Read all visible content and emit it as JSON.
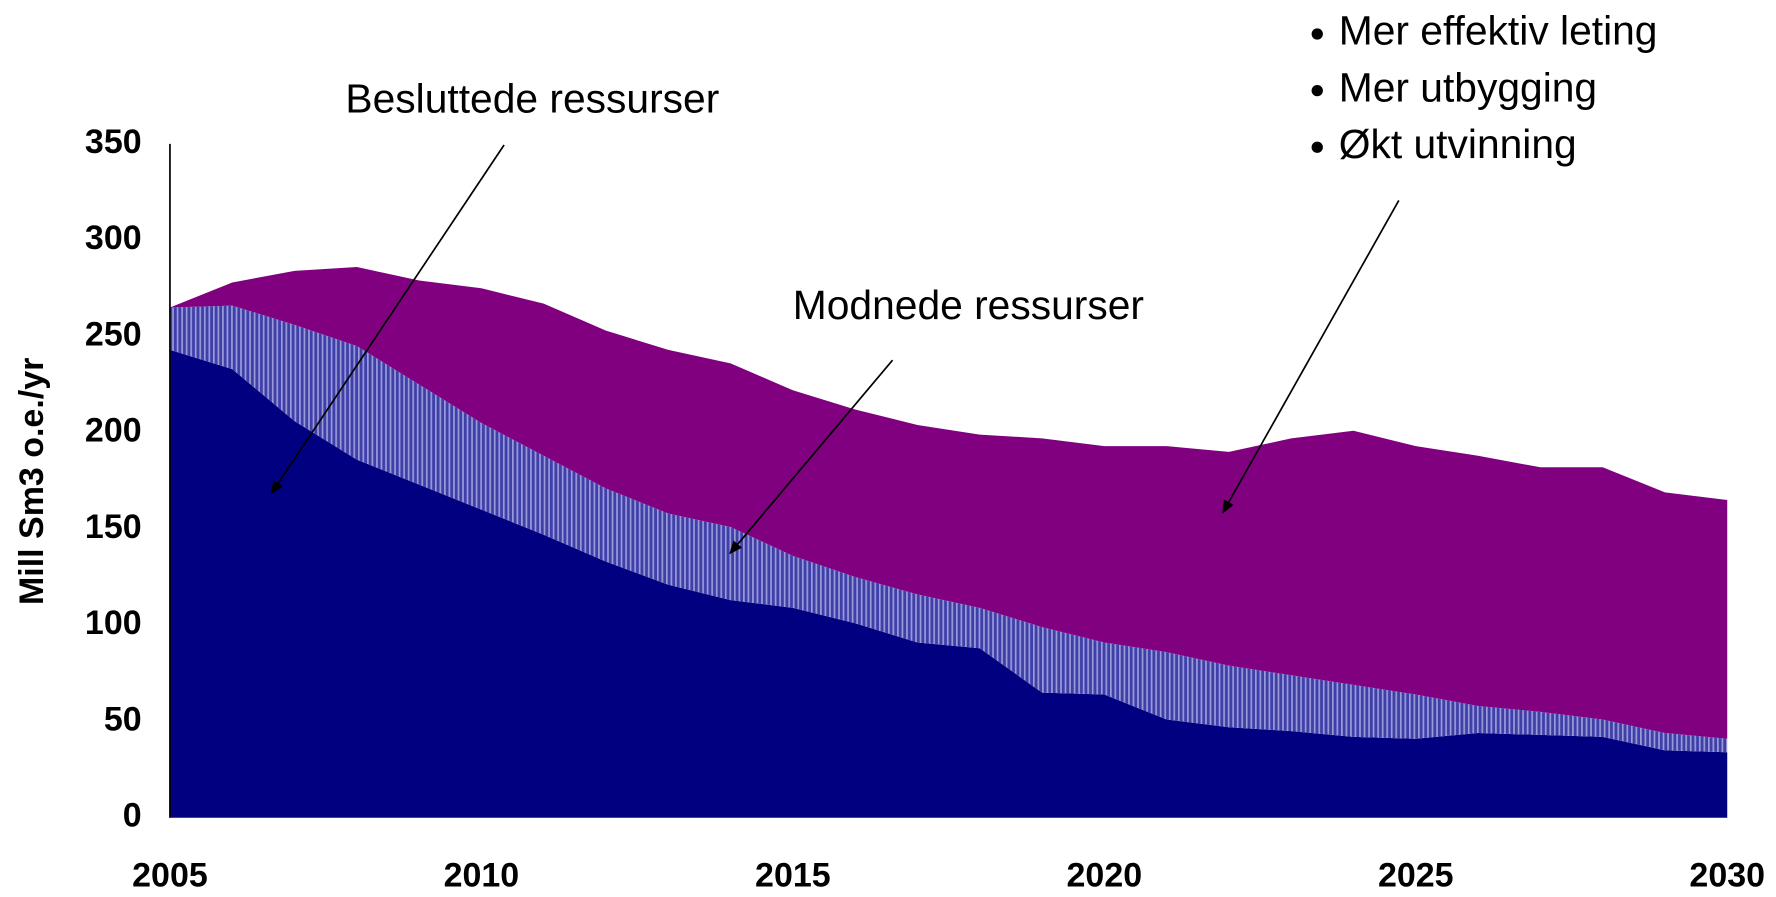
{
  "chart_data": {
    "type": "stacked_area",
    "y_label": "Mill Sm3 o.e./yr",
    "x": [
      2005,
      2006,
      2007,
      2008,
      2009,
      2010,
      2011,
      2012,
      2013,
      2014,
      2015,
      2016,
      2017,
      2018,
      2019,
      2020,
      2021,
      2022,
      2023,
      2024,
      2025,
      2026,
      2027,
      2028,
      2029,
      2030
    ],
    "xlim": [
      2005,
      2030
    ],
    "xticks": [
      2005,
      2010,
      2015,
      2020,
      2025,
      2030
    ],
    "ylim": [
      0,
      350
    ],
    "yticks": [
      0,
      50,
      100,
      150,
      200,
      250,
      300,
      350
    ],
    "series": [
      {
        "name": "Besluttede ressurser",
        "color": "#000080",
        "values": [
          243,
          233,
          206,
          186,
          173,
          160,
          147,
          133,
          121,
          113,
          109,
          101,
          91,
          88,
          65,
          64,
          51,
          47,
          45,
          42,
          41,
          44,
          43,
          42,
          35,
          34
        ]
      },
      {
        "name": "Modnede ressurser",
        "color": "#3f3faa",
        "pattern": "vertical-hatch",
        "values": [
          22,
          33,
          50,
          59,
          52,
          45,
          41,
          38,
          37,
          38,
          27,
          24,
          25,
          21,
          34,
          27,
          35,
          32,
          29,
          27,
          23,
          14,
          12,
          9,
          9,
          7
        ]
      },
      {
        "bullets": [
          "Mer effektiv leting",
          "Mer utbygging",
          "Økt utvinning"
        ],
        "color": "#800080",
        "values": [
          0,
          12,
          28,
          41,
          54,
          70,
          79,
          82,
          85,
          85,
          86,
          87,
          88,
          90,
          98,
          102,
          107,
          111,
          123,
          132,
          129,
          130,
          127,
          131,
          125,
          124
        ]
      }
    ]
  }
}
